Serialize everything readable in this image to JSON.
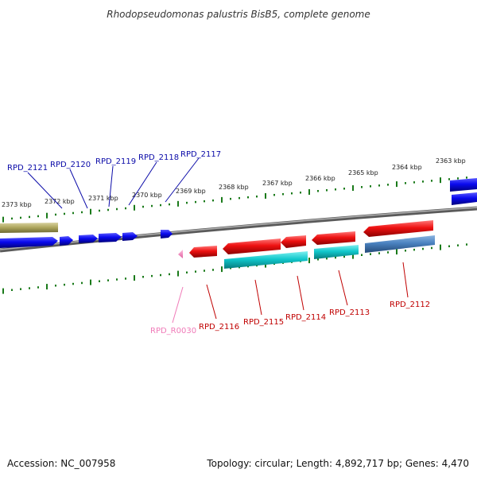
{
  "title": "Rhodopseudomonas palustris BisB5, complete genome",
  "footer": {
    "accession": "Accession: NC_007958",
    "topology": "Topology: circular; Length: 4,892,717 bp; Genes: 4,470"
  },
  "colors": {
    "label_upper": "#0a0aa8",
    "label_lower": "#c00000",
    "label_rna": "#f07ab8",
    "ticks": "#1a7a1a",
    "backbone": "#808080",
    "gene_blue": "#0a0aee",
    "gene_red": "#ee1111",
    "gene_cyan": "#11c8cc",
    "gene_steel": "#4a82c0",
    "gene_olive": "#b0a860",
    "gene_pink": "#f07ab8"
  },
  "scale": {
    "unit": "kbp",
    "labels": [
      "2373 kbp",
      "2372 kbp",
      "2371 kbp",
      "2370 kbp",
      "2369 kbp",
      "2368 kbp",
      "2367 kbp",
      "2366 kbp",
      "2365 kbp",
      "2364 kbp",
      "2363 kbp"
    ]
  },
  "gene_labels_upper": [
    "RPD_2121",
    "RPD_2120",
    "RPD_2119",
    "RPD_2118",
    "RPD_2117"
  ],
  "gene_labels_lower": [
    "RPD_R0030",
    "RPD_2116",
    "RPD_2115",
    "RPD_2114",
    "RPD_2113",
    "RPD_2112"
  ]
}
